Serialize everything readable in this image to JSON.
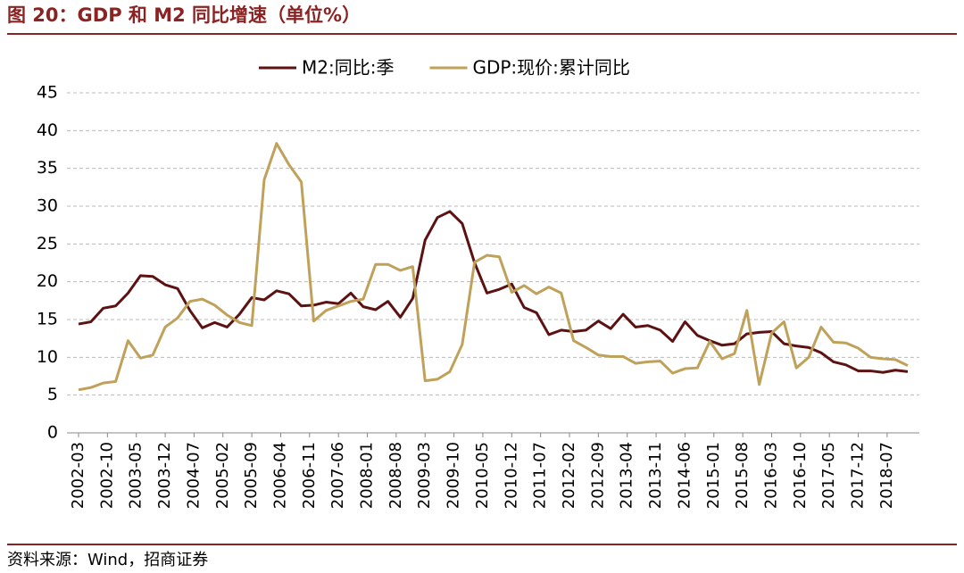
{
  "chart_data": {
    "type": "line",
    "title": "图 20：GDP 和 M2 同比增速（单位%）",
    "source": "资料来源：Wind，招商证券",
    "x": [
      "2002-03",
      "2002-06",
      "2002-09",
      "2002-12",
      "2003-03",
      "2003-06",
      "2003-09",
      "2003-12",
      "2004-03",
      "2004-06",
      "2004-09",
      "2004-12",
      "2005-03",
      "2005-06",
      "2005-09",
      "2005-12",
      "2006-03",
      "2006-06",
      "2006-09",
      "2006-12",
      "2007-03",
      "2007-06",
      "2007-09",
      "2007-12",
      "2008-03",
      "2008-06",
      "2008-09",
      "2008-12",
      "2009-03",
      "2009-06",
      "2009-09",
      "2009-12",
      "2010-03",
      "2010-06",
      "2010-09",
      "2010-12",
      "2011-03",
      "2011-06",
      "2011-09",
      "2011-12",
      "2012-03",
      "2012-06",
      "2012-09",
      "2012-12",
      "2013-03",
      "2013-06",
      "2013-09",
      "2013-12",
      "2014-03",
      "2014-06",
      "2014-09",
      "2014-12",
      "2015-03",
      "2015-06",
      "2015-09",
      "2015-12",
      "2016-03",
      "2016-06",
      "2016-09",
      "2016-12",
      "2017-03",
      "2017-06",
      "2017-09",
      "2017-12",
      "2018-03",
      "2018-06",
      "2018-09",
      "2018-12"
    ],
    "series": [
      {
        "name": "M2:同比:季",
        "color": "#5c1212",
        "values": [
          14.4,
          14.7,
          16.5,
          16.8,
          18.5,
          20.8,
          20.7,
          19.6,
          19.1,
          16.2,
          13.9,
          14.6,
          14.0,
          15.7,
          17.9,
          17.6,
          18.8,
          18.4,
          16.8,
          16.9,
          17.3,
          17.1,
          18.5,
          16.7,
          16.3,
          17.4,
          15.3,
          17.8,
          25.5,
          28.5,
          29.3,
          27.7,
          22.5,
          18.5,
          19.0,
          19.7,
          16.6,
          15.9,
          13.0,
          13.6,
          13.4,
          13.6,
          14.8,
          13.8,
          15.7,
          14.0,
          14.2,
          13.6,
          12.1,
          14.7,
          12.9,
          12.2,
          11.6,
          11.8,
          13.1,
          13.3,
          13.4,
          11.8,
          11.5,
          11.3,
          10.6,
          9.4,
          9.0,
          8.2,
          8.2,
          8.0,
          8.3,
          8.1
        ]
      },
      {
        "name": "GDP:现价:累计同比",
        "color": "#bfa15a",
        "values": [
          5.7,
          6.0,
          6.6,
          6.8,
          12.2,
          9.9,
          10.3,
          14.0,
          15.2,
          17.4,
          17.7,
          16.9,
          15.6,
          14.6,
          14.2,
          33.5,
          38.3,
          35.5,
          33.2,
          14.8,
          16.2,
          16.8,
          17.4,
          17.7,
          22.3,
          22.3,
          21.5,
          22.0,
          6.9,
          7.1,
          8.1,
          11.7,
          22.6,
          23.5,
          23.3,
          18.6,
          19.5,
          18.4,
          19.3,
          18.5,
          12.2,
          11.3,
          10.3,
          10.1,
          10.1,
          9.2,
          9.4,
          9.5,
          7.9,
          8.5,
          8.6,
          12.1,
          9.8,
          10.5,
          16.2,
          6.4,
          13.2,
          14.7,
          8.6,
          10.0,
          14.0,
          12.0,
          11.9,
          11.2,
          10.0,
          9.8,
          9.7,
          8.9
        ]
      }
    ],
    "xlim": [
      "2002-03",
      "2018-12"
    ],
    "xticks": [
      "2002-03",
      "2002-10",
      "2003-05",
      "2003-12",
      "2004-07",
      "2005-02",
      "2005-09",
      "2006-04",
      "2006-11",
      "2007-06",
      "2008-01",
      "2008-08",
      "2009-03",
      "2009-10",
      "2010-05",
      "2010-12",
      "2011-07",
      "2012-02",
      "2012-09",
      "2013-04",
      "2013-11",
      "2014-06",
      "2015-01",
      "2015-08",
      "2016-03",
      "2016-10",
      "2017-05",
      "2017-12",
      "2018-07"
    ],
    "ylim": [
      0,
      45
    ],
    "yticks": [
      0,
      5,
      10,
      15,
      20,
      25,
      30,
      35,
      40,
      45
    ],
    "grid": true
  }
}
